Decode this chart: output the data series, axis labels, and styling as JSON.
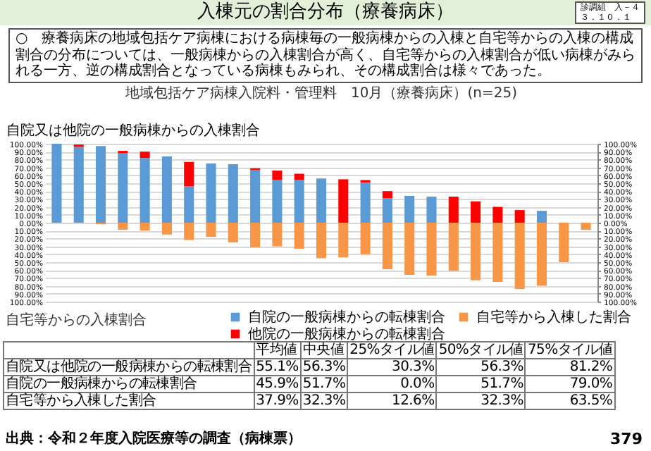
{
  "chart_data": {
    "type": "bar",
    "stacked": true,
    "title": "入棟元の割合分布（療養病床）",
    "subtitle": "地域包括ケア病棟入院料・管理料　10月（療養病床）(n=25)",
    "ylabel": "自院又は他院の一般病棟からの入棟割合",
    "categories": [
      null,
      null,
      null,
      null,
      null,
      null,
      null,
      null,
      null,
      null,
      null,
      null,
      null,
      null,
      null,
      null,
      null,
      null,
      null,
      null,
      null,
      null,
      null,
      null,
      null
    ],
    "series": [
      {
        "name": "自院の一般病棟からの転棟割合",
        "color": "#5b9bd5",
        "values": [
          100,
          96,
          97,
          88,
          82,
          84,
          46,
          75,
          74,
          67,
          54,
          54,
          56,
          0,
          51,
          31,
          34,
          33,
          0,
          0,
          0,
          0,
          15,
          0,
          0
        ]
      },
      {
        "name": "他院の一般病棟からの転棟割合",
        "color": "#ff0000",
        "values": [
          0,
          3,
          0,
          3,
          8,
          0,
          31,
          0,
          0,
          2,
          12,
          8,
          0,
          55,
          3,
          9,
          0,
          0,
          33,
          27,
          20,
          16,
          0,
          0,
          0
        ]
      },
      {
        "name": "自宅等から入棟した割合",
        "color": "#f79646",
        "values": [
          0,
          0,
          -2,
          -9,
          -10,
          -15,
          -22,
          -18,
          -25,
          -31,
          -30,
          -33,
          -45,
          -44,
          -40,
          -59,
          -66,
          -67,
          -61,
          -73,
          -75,
          -84,
          -80,
          -50,
          -9
        ]
      }
    ],
    "ylim": [
      -100,
      100
    ],
    "yticks": [
      {
        "value": -100,
        "label": "100.00%"
      },
      {
        "value": -90,
        "label": "90.00%"
      },
      {
        "value": -80,
        "label": "80.00%"
      },
      {
        "value": -70,
        "label": "70.00%"
      },
      {
        "value": -60,
        "label": "60.00%"
      },
      {
        "value": -50,
        "label": "50.00%"
      },
      {
        "value": -40,
        "label": "40.00%"
      },
      {
        "value": -30,
        "label": "30.00%"
      },
      {
        "value": -20,
        "label": "20.00%"
      },
      {
        "value": -10,
        "label": "10.00%"
      },
      {
        "value": 0,
        "label": "0.00%"
      },
      {
        "value": 10,
        "label": "10.00%"
      },
      {
        "value": 20,
        "label": "20.00%"
      },
      {
        "value": 30,
        "label": "30.00%"
      },
      {
        "value": 40,
        "label": "40.00%"
      },
      {
        "value": 50,
        "label": "50.00%"
      },
      {
        "value": 60,
        "label": "60.00%"
      },
      {
        "value": 70,
        "label": "70.00%"
      },
      {
        "value": 80,
        "label": "80.00%"
      },
      {
        "value": 90,
        "label": "90.00%"
      },
      {
        "value": 100,
        "label": "100.00%"
      }
    ],
    "y2lim": [
      -100,
      100
    ],
    "y2ticks": [
      {
        "value": -100,
        "label": "100.00%"
      },
      {
        "value": -90,
        "label": "90.00%"
      },
      {
        "value": -80,
        "label": "80.00%"
      },
      {
        "value": -70,
        "label": "70.00%"
      },
      {
        "value": -60,
        "label": "60.00%"
      },
      {
        "value": -50,
        "label": "50.00%"
      },
      {
        "value": -40,
        "label": "40.00%"
      },
      {
        "value": -30,
        "label": "30.00%"
      },
      {
        "value": -20,
        "label": "20.00%"
      },
      {
        "value": -10,
        "label": "10.00%"
      },
      {
        "value": 0,
        "label": "0.00%"
      },
      {
        "value": 10,
        "label": "10.00%"
      },
      {
        "value": 20,
        "label": "20.00%"
      },
      {
        "value": 30,
        "label": "30.00%"
      },
      {
        "value": 40,
        "label": "40.00%"
      },
      {
        "value": 50,
        "label": "50.00%"
      },
      {
        "value": 60,
        "label": "60.00%"
      },
      {
        "value": 70,
        "label": "70.00%"
      },
      {
        "value": 80,
        "label": "80.00%"
      },
      {
        "value": 90,
        "label": "90.00%"
      },
      {
        "value": 100,
        "label": "100.00%"
      }
    ],
    "grid": "y",
    "legend": "bottom",
    "annotations": [
      "診調組　入－４",
      "３．１０．１",
      "○　療養病床の地域包括ケア病棟における病棟毎の一般病棟からの入棟と自宅等からの入棟の構成割合の分布については、一般病棟からの入棟割合が高く、自宅等からの入棟割合が低い病棟がみられる一方、逆の構成割合となっている病棟もみられ、その構成割合は様々であった。",
      "自宅等からの入棟割合",
      "平均値",
      "中央値",
      "25%タイル値",
      "50%タイル値",
      "75%タイル値",
      "自院又は他院の一般病棟からの転棟割合",
      "55.1%",
      "56.3%",
      "30.3%",
      "56.3%",
      "81.2%",
      "自院の一般病棟からの転棟割合",
      "45.9%",
      "51.7%",
      "0.0%",
      "51.7%",
      "79.0%",
      "自宅等から入棟した割合",
      "37.9%",
      "32.3%",
      "12.6%",
      "32.3%",
      "63.5%",
      "出典：令和２年度入院医療等の調査（病棟票）",
      "379"
    ]
  }
}
